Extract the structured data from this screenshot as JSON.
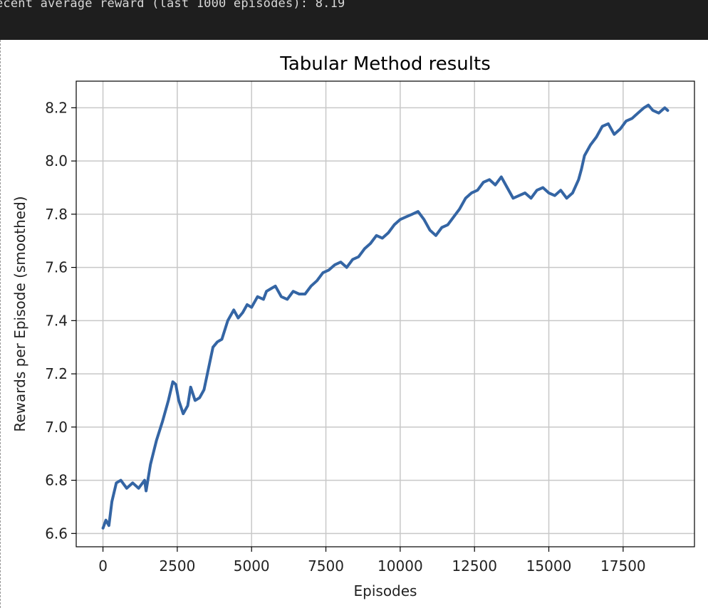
{
  "console": {
    "output_line": "ecent average reward (last 1000 episodes): 8.19"
  },
  "colors": {
    "console_bg": "#1e1e1e",
    "line": "#3465a4",
    "grid": "#c8c8c8"
  },
  "chart_data": {
    "type": "line",
    "title": "Tabular Method results",
    "xlabel": "Episodes",
    "ylabel": "Rewards per Episode (smoothed)",
    "xlim": [
      -900,
      19900
    ],
    "ylim": [
      6.55,
      8.3
    ],
    "xticks": [
      0,
      2500,
      5000,
      7500,
      10000,
      12500,
      15000,
      17500
    ],
    "yticks": [
      6.6,
      6.8,
      7.0,
      7.2,
      7.4,
      7.6,
      7.8,
      8.0,
      8.2
    ],
    "ytick_labels": [
      "6.6",
      "6.8",
      "7.0",
      "7.2",
      "7.4",
      "7.6",
      "7.8",
      "8.0",
      "8.2"
    ],
    "grid": true,
    "series": [
      {
        "x": [
          0,
          100,
          200,
          300,
          450,
          600,
          800,
          1000,
          1200,
          1400,
          1450,
          1600,
          1800,
          2000,
          2200,
          2350,
          2450,
          2550,
          2700,
          2850,
          2950,
          3100,
          3250,
          3400,
          3550,
          3700,
          3850,
          4000,
          4200,
          4400,
          4550,
          4700,
          4850,
          5000,
          5200,
          5400,
          5500,
          5650,
          5800,
          6000,
          6200,
          6400,
          6600,
          6800,
          7000,
          7200,
          7400,
          7600,
          7800,
          8000,
          8200,
          8400,
          8600,
          8800,
          9000,
          9200,
          9400,
          9600,
          9800,
          10000,
          10200,
          10400,
          10600,
          10800,
          11000,
          11200,
          11400,
          11600,
          11800,
          12000,
          12200,
          12400,
          12600,
          12800,
          13000,
          13200,
          13400,
          13600,
          13800,
          14000,
          14200,
          14400,
          14600,
          14800,
          15000,
          15200,
          15400,
          15600,
          15800,
          16000,
          16100,
          16200,
          16400,
          16600,
          16800,
          17000,
          17200,
          17400,
          17600,
          17800,
          18000,
          18200,
          18350,
          18500,
          18700,
          18900,
          19000
        ],
        "y": [
          6.62,
          6.65,
          6.63,
          6.72,
          6.79,
          6.8,
          6.77,
          6.79,
          6.77,
          6.8,
          6.76,
          6.86,
          6.95,
          7.02,
          7.1,
          7.17,
          7.16,
          7.1,
          7.05,
          7.08,
          7.15,
          7.1,
          7.11,
          7.14,
          7.22,
          7.3,
          7.32,
          7.33,
          7.4,
          7.44,
          7.41,
          7.43,
          7.46,
          7.45,
          7.49,
          7.48,
          7.51,
          7.52,
          7.53,
          7.49,
          7.48,
          7.51,
          7.5,
          7.5,
          7.53,
          7.55,
          7.58,
          7.59,
          7.61,
          7.62,
          7.6,
          7.63,
          7.64,
          7.67,
          7.69,
          7.72,
          7.71,
          7.73,
          7.76,
          7.78,
          7.79,
          7.8,
          7.81,
          7.78,
          7.74,
          7.72,
          7.75,
          7.76,
          7.79,
          7.82,
          7.86,
          7.88,
          7.89,
          7.92,
          7.93,
          7.91,
          7.94,
          7.9,
          7.86,
          7.87,
          7.88,
          7.86,
          7.89,
          7.9,
          7.88,
          7.87,
          7.89,
          7.86,
          7.88,
          7.93,
          7.97,
          8.02,
          8.06,
          8.09,
          8.13,
          8.14,
          8.1,
          8.12,
          8.15,
          8.16,
          8.18,
          8.2,
          8.21,
          8.19,
          8.18,
          8.2,
          8.19
        ]
      }
    ]
  }
}
